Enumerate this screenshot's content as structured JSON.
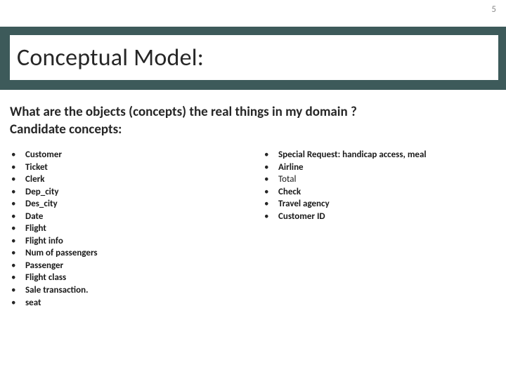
{
  "slide_number": "5",
  "title": "Conceptual Model:",
  "subtitle_line1": "What are the objects (concepts) the real things in my domain ?",
  "subtitle_line2": "Candidate concepts:",
  "colors": {
    "band": "#3d5a5a",
    "title_inner_bg": "#ffffff",
    "page_bg": "#ffffff",
    "title_text": "#262626",
    "body_text": "#1a1a1a",
    "slide_number": "#8a8a8a"
  },
  "left_items": [
    {
      "text": "Customer",
      "weight": "bold"
    },
    {
      "text": "Ticket",
      "weight": "bold"
    },
    {
      "text": "Clerk",
      "weight": "bold"
    },
    {
      "text": "Dep_city",
      "weight": "bold"
    },
    {
      "text": "Des_city",
      "weight": "bold"
    },
    {
      "text": "Date",
      "weight": "bold"
    },
    {
      "text": "Flight",
      "weight": "bold"
    },
    {
      "text": "Flight info",
      "weight": "bold"
    },
    {
      "text": "Num of passengers",
      "weight": "bold"
    },
    {
      "text": "Passenger",
      "weight": "bold"
    },
    {
      "text": "Flight class",
      "weight": "bold"
    },
    {
      "text": "Sale transaction.",
      "weight": "bold"
    },
    {
      "text": "seat",
      "weight": "bold"
    }
  ],
  "right_items": [
    {
      "text": "Special Request: handicap access, meal",
      "weight": "bold"
    },
    {
      "text": "Airline",
      "weight": "bold"
    },
    {
      "text": "Total",
      "weight": "normal"
    },
    {
      "text": "Check",
      "weight": "bold"
    },
    {
      "text": "Travel agency",
      "weight": "bold"
    },
    {
      "text": "Customer ID",
      "weight": "bold"
    }
  ],
  "bullet_char": "•",
  "typography": {
    "title_fontsize": 34,
    "subtitle_fontsize": 19,
    "bullet_fontsize": 13
  }
}
